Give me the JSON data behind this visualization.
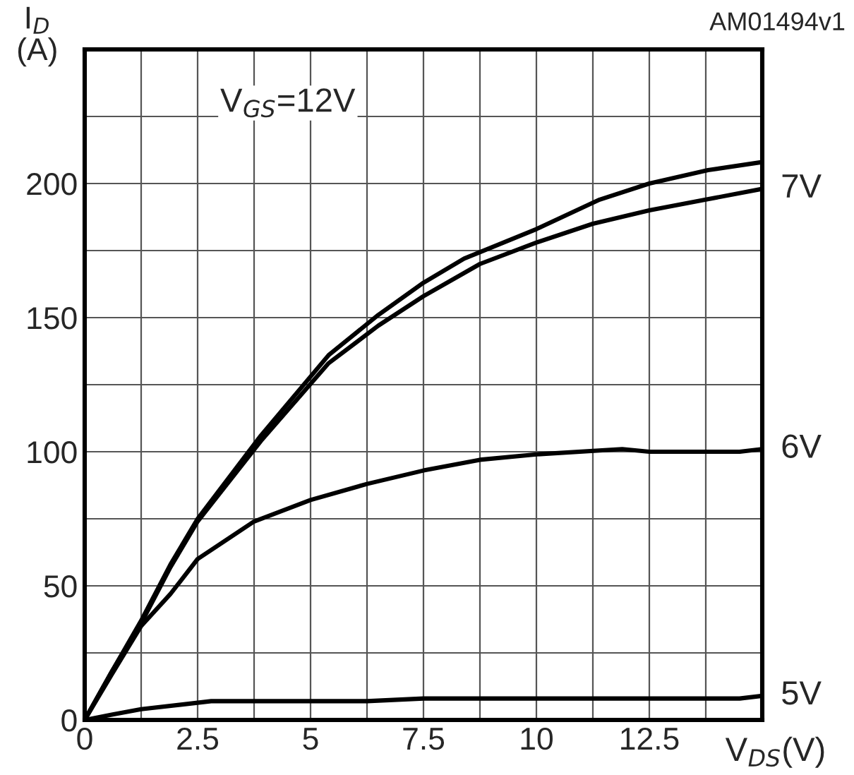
{
  "chart_data": {
    "type": "line",
    "xlabel": "V$_{DS}$(V)",
    "ylabel": "I$_{D}$\n(A)",
    "annotations": [
      "AM01494v1",
      "V$_{GS}$=12V"
    ],
    "xlim": [
      0,
      15
    ],
    "ylim": [
      0,
      250
    ],
    "xticks": [
      0,
      {
        "value": 1.25,
        "label": null
      },
      2.5,
      {
        "value": 3.75,
        "label": null
      },
      5,
      {
        "value": 6.25,
        "label": null
      },
      7.5,
      {
        "value": 8.75,
        "label": null
      },
      10,
      {
        "value": 11.25,
        "label": null
      },
      12.5,
      {
        "value": 13.75,
        "label": null
      },
      {
        "value": 15,
        "label": null
      }
    ],
    "yticks": [
      0,
      {
        "value": 25,
        "label": null
      },
      50,
      {
        "value": 75,
        "label": null
      },
      100,
      {
        "value": 125,
        "label": null
      },
      150,
      {
        "value": 175,
        "label": null
      },
      200,
      {
        "value": 225,
        "label": null
      },
      {
        "value": 250,
        "label": null
      }
    ],
    "grid": true,
    "marker": "none",
    "line_style": "solid",
    "series": [
      {
        "color": "#000000",
        "x": [
          0,
          0.6,
          1.25,
          1.9,
          2.5,
          3.9,
          5.4,
          6.5,
          7.5,
          8.4,
          10,
          11.4,
          12.5,
          13.8,
          15
        ],
        "values": [
          0,
          18,
          37,
          58,
          75,
          106,
          136,
          151,
          163,
          172,
          183,
          194,
          200,
          205,
          208
        ]
      },
      {
        "name": "7V",
        "color": "#000000",
        "x": [
          0,
          0.6,
          1.25,
          1.9,
          2.5,
          3.9,
          5.4,
          6.5,
          7.5,
          8.75,
          10,
          11.25,
          12.5,
          13.75,
          15
        ],
        "values": [
          0,
          18,
          36,
          57,
          74,
          104,
          133,
          147,
          158,
          170,
          178,
          185,
          190,
          194,
          198
        ]
      },
      {
        "name": "6V",
        "color": "#000000",
        "x": [
          0,
          0.6,
          1.25,
          1.9,
          2.5,
          3.75,
          5,
          6.25,
          7.5,
          8.75,
          10,
          11.9,
          12.5,
          13.75,
          14.5,
          15
        ],
        "values": [
          0,
          17,
          35,
          47,
          60,
          74,
          82,
          88,
          93,
          97,
          99,
          101,
          100,
          100,
          100,
          101
        ]
      },
      {
        "name": "5V",
        "color": "#000000",
        "x": [
          0,
          0.6,
          1.25,
          2.8,
          4,
          6.25,
          7.5,
          10,
          12.5,
          14.5,
          15
        ],
        "values": [
          0,
          2,
          4,
          7,
          7,
          7,
          8,
          8,
          8,
          8,
          9
        ]
      }
    ]
  }
}
